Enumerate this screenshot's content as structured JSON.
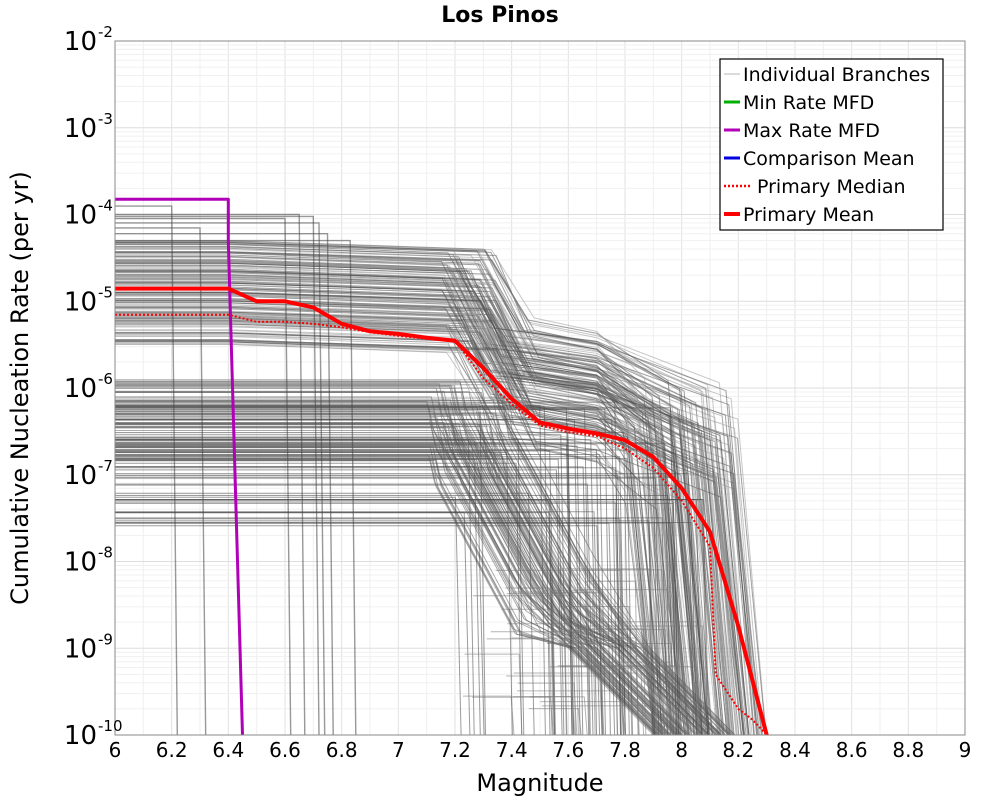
{
  "chart_data": {
    "type": "line",
    "title": "Los Pinos",
    "xlabel": "Magnitude",
    "ylabel": "Cumulative Nucleation Rate (per yr)",
    "xlim": [
      6,
      9
    ],
    "ylim": [
      1e-10,
      0.01
    ],
    "yscale": "log",
    "grid": true,
    "legend_position": "top-right",
    "x_ticks": [
      "6",
      "6.2",
      "6.4",
      "6.6",
      "6.8",
      "7",
      "7.2",
      "7.4",
      "7.6",
      "7.8",
      "8",
      "8.2",
      "8.4",
      "8.6",
      "8.8",
      "9"
    ],
    "y_ticks": [
      {
        "base": "10",
        "exp": "-2",
        "value": 0.01
      },
      {
        "base": "10",
        "exp": "-3",
        "value": 0.001
      },
      {
        "base": "10",
        "exp": "-4",
        "value": 0.0001
      },
      {
        "base": "10",
        "exp": "-5",
        "value": 1e-05
      },
      {
        "base": "10",
        "exp": "-6",
        "value": 1e-06
      },
      {
        "base": "10",
        "exp": "-7",
        "value": 1e-07
      },
      {
        "base": "10",
        "exp": "-8",
        "value": 1e-08
      },
      {
        "base": "10",
        "exp": "-9",
        "value": 1e-09
      },
      {
        "base": "10",
        "exp": "-10",
        "value": 1e-10
      }
    ],
    "series": [
      {
        "name": "Max Rate MFD",
        "color": "#b000b8",
        "style": "solid",
        "x": [
          6.0,
          6.4,
          6.4,
          6.45
        ],
        "y": [
          0.00015,
          0.00015,
          5e-05,
          1e-10
        ]
      },
      {
        "name": "Primary Median",
        "color": "#ff0000",
        "style": "dotted",
        "x": [
          6.0,
          6.4,
          6.5,
          6.6,
          6.7,
          6.8,
          6.9,
          7.0,
          7.1,
          7.2,
          7.3,
          7.4,
          7.5,
          7.6,
          7.7,
          7.8,
          7.9,
          8.0,
          8.1,
          8.12,
          8.2,
          8.25,
          8.3
        ],
        "y": [
          7e-06,
          7e-06,
          5.8e-06,
          5.8e-06,
          5.5e-06,
          5e-06,
          4.4e-06,
          4e-06,
          3.7e-06,
          3.5e-06,
          1.3e-06,
          6.5e-07,
          3.7e-07,
          3.1e-07,
          2.8e-07,
          2e-07,
          1.2e-07,
          5e-08,
          1.5e-08,
          5e-10,
          2e-10,
          1.5e-10,
          1e-10
        ]
      },
      {
        "name": "Primary Mean",
        "color": "#ff0000",
        "style": "solid",
        "x": [
          6.0,
          6.4,
          6.5,
          6.6,
          6.7,
          6.8,
          6.9,
          7.0,
          7.1,
          7.2,
          7.3,
          7.4,
          7.5,
          7.6,
          7.7,
          7.8,
          7.9,
          8.0,
          8.1,
          8.2,
          8.3
        ],
        "y": [
          1.4e-05,
          1.4e-05,
          1e-05,
          1e-05,
          8.5e-06,
          5.5e-06,
          4.5e-06,
          4.2e-06,
          3.8e-06,
          3.5e-06,
          1.7e-06,
          7.5e-07,
          4e-07,
          3.4e-07,
          3e-07,
          2.5e-07,
          1.6e-07,
          7e-08,
          2.2e-08,
          1.8e-09,
          1e-10
        ]
      }
    ],
    "legend": [
      {
        "label": "Individual Branches",
        "color": "#b4b4b4",
        "style": "thin"
      },
      {
        "label": "Min Rate MFD",
        "color": "#00b000",
        "style": "solid"
      },
      {
        "label": "Max Rate MFD",
        "color": "#b000b8",
        "style": "solid"
      },
      {
        "label": "Comparison Mean",
        "color": "#0000e0",
        "style": "solid"
      },
      {
        "label": "Primary Median",
        "color": "#ff0000",
        "style": "dotted"
      },
      {
        "label": "Primary Mean",
        "color": "#ff0000",
        "style": "thick"
      }
    ]
  }
}
